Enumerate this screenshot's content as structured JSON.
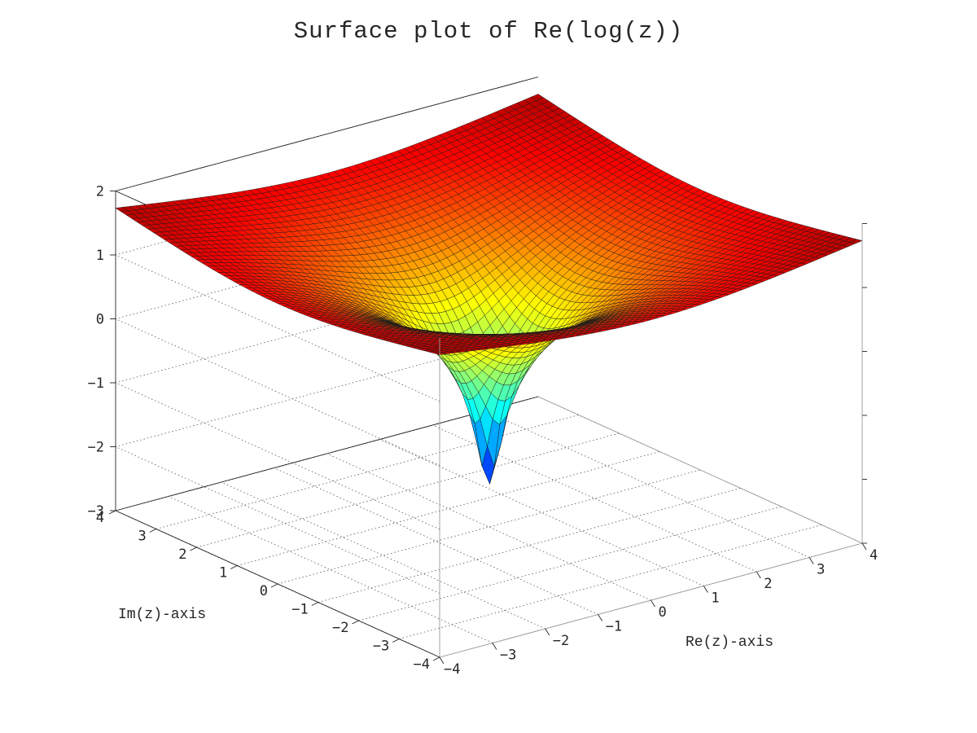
{
  "chart_data": {
    "type": "surface",
    "title": "Surface plot of Re(log(z))",
    "function": "Re(log(z))",
    "xlabel": "Re(z)-axis",
    "ylabel": "Im(z)-axis",
    "zlabel": "",
    "xlim": [
      -4,
      4
    ],
    "ylim": [
      -4,
      4
    ],
    "zlim": [
      -3,
      2
    ],
    "xticks": [
      -4,
      -3,
      -2,
      -1,
      0,
      1,
      2,
      3,
      4
    ],
    "yticks": [
      -4,
      -3,
      -2,
      -1,
      0,
      1,
      2,
      3,
      4
    ],
    "zticks": [
      -3,
      -2,
      -1,
      0,
      1,
      2
    ],
    "xtick_labels": [
      "−4",
      "−3",
      "−2",
      "−1",
      "0",
      "1",
      "2",
      "3",
      "4"
    ],
    "ytick_labels": [
      "−4",
      "−3",
      "−2",
      "−1",
      "0",
      "1",
      "2",
      "3",
      "4"
    ],
    "ztick_labels": [
      "−3",
      "−2",
      "−1",
      "0",
      "1",
      "2"
    ],
    "grid": true,
    "colormap": "jet",
    "grid_resolution": 60,
    "sample_values": [
      {
        "re": 4,
        "im": 4,
        "value": 1.733
      },
      {
        "re": -4,
        "im": -4,
        "value": 1.733
      },
      {
        "re": 4,
        "im": -4,
        "value": 1.733
      },
      {
        "re": -4,
        "im": 4,
        "value": 1.733
      },
      {
        "re": 4,
        "im": 0,
        "value": 1.386
      },
      {
        "re": 1,
        "im": 0,
        "value": 0
      },
      {
        "re": 0.067,
        "im": 0.067,
        "value": -2.36
      }
    ]
  }
}
